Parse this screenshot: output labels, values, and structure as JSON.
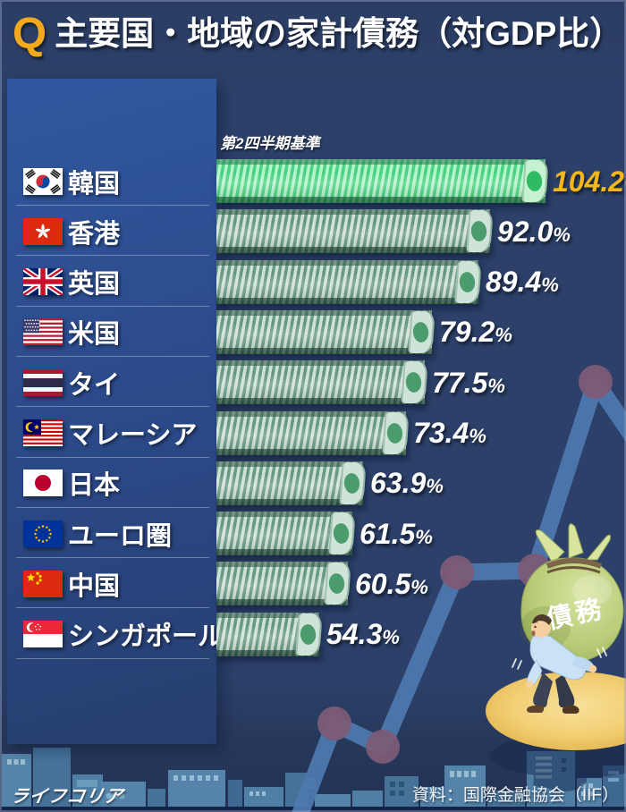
{
  "title": {
    "q_mark": "Q",
    "text": "主要国・地域の家計債務（対GDP比）"
  },
  "note": "第2四半期基準",
  "source": "資料：国際金融協会（IIF）",
  "brand_logo": "ライフコリア",
  "illustration": {
    "bag_label": "債務"
  },
  "colors": {
    "background_navy": "#2c4069",
    "panel_blue": "#2d4f90",
    "accent_gold": "#f3b71c",
    "bar_green_bright": "#3bd078",
    "bar_green_muted": "#5d9379",
    "line_blue": "#4e79b0",
    "node_purple": "#7c5b77",
    "spotlight_yellow": "#f0cd6e"
  },
  "chart_data": {
    "type": "bar",
    "orientation": "horizontal",
    "title": "主要国・地域の家計債務（対GDP比）",
    "note": "第2四半期基準",
    "source": "国際金融協会（IIF）",
    "unit": "%",
    "categories": [
      "韓国",
      "香港",
      "英国",
      "米国",
      "タイ",
      "マレーシア",
      "日本",
      "ユーロ圏",
      "中国",
      "シンガポール"
    ],
    "country_ids": [
      "korea",
      "hongkong",
      "uk",
      "usa",
      "thailand",
      "malaysia",
      "japan",
      "eurozone",
      "china",
      "singapore"
    ],
    "flag_codes": [
      "kr",
      "hk",
      "gb",
      "us",
      "th",
      "my",
      "jp",
      "eu",
      "cn",
      "sg"
    ],
    "values": [
      104.2,
      92.0,
      89.4,
      79.2,
      77.5,
      73.4,
      63.9,
      61.5,
      60.5,
      54.3
    ],
    "value_labels": [
      "104.2%",
      "92.0%",
      "89.4%",
      "79.2%",
      "77.5%",
      "73.4%",
      "63.9%",
      "61.5%",
      "60.5%",
      "54.3%"
    ],
    "highlight_index": 0,
    "xlim": [
      0,
      110
    ],
    "legend": null,
    "grid": false
  }
}
